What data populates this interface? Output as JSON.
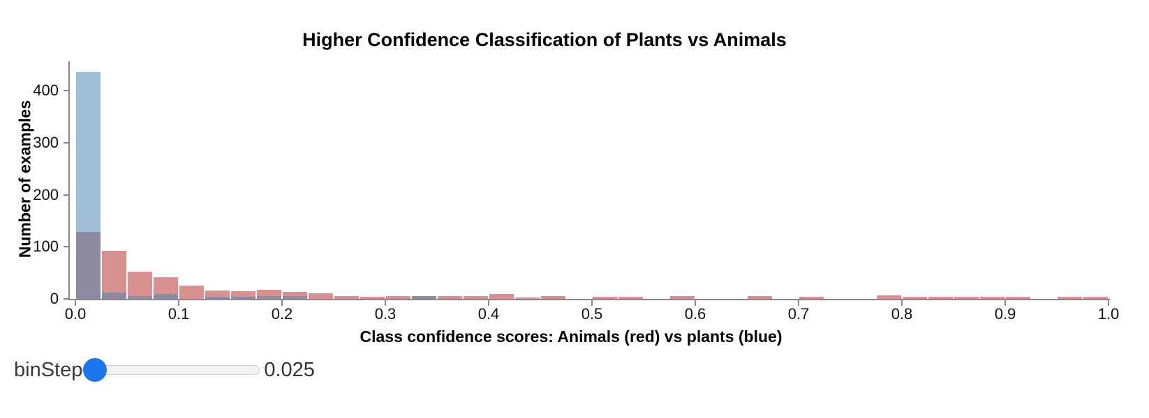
{
  "chart": {
    "title": "Higher Confidence Classification of Plants vs Animals",
    "x_axis_title": "Class confidence scores: Animals (red) vs plants (blue)",
    "y_axis_title": "Number of examples"
  },
  "chart_data": {
    "type": "bar",
    "subtype": "overlaid_histogram",
    "title": "Higher Confidence Classification of Plants vs Animals",
    "xlabel": "Class confidence scores: Animals (red) vs plants (blue)",
    "ylabel": "Number of examples",
    "x_domain": [
      0.0,
      1.0
    ],
    "y_domain": [
      0,
      450
    ],
    "bin_step": 0.025,
    "grid": false,
    "legend": "none",
    "axis_color": "#888888",
    "x_tick_labels": [
      "0.0",
      "0.1",
      "0.2",
      "0.3",
      "0.4",
      "0.5",
      "0.6",
      "0.7",
      "0.8",
      "0.9",
      "1.0"
    ],
    "y_tick_values": [
      0,
      100,
      200,
      300,
      400
    ],
    "y_tick_labels": [
      "0",
      "100",
      "200",
      "300",
      "400"
    ],
    "bin_starts": [
      0,
      0.025,
      0.05,
      0.075,
      0.1,
      0.125,
      0.15,
      0.175,
      0.2,
      0.225,
      0.25,
      0.275,
      0.3,
      0.325,
      0.35,
      0.375,
      0.4,
      0.425,
      0.45,
      0.475,
      0.5,
      0.525,
      0.55,
      0.575,
      0.6,
      0.625,
      0.65,
      0.675,
      0.7,
      0.725,
      0.75,
      0.775,
      0.8,
      0.825,
      0.85,
      0.875,
      0.9,
      0.925,
      0.95,
      0.975
    ],
    "series": [
      {
        "name": "Animals",
        "fill": "rgba(178,34,34,0.5)",
        "appears_on_white": "#d99396",
        "overlap_with_blue_appears": "#8e89a2",
        "counts": [
          128,
          93,
          52,
          42,
          25,
          16,
          15,
          18,
          14,
          11,
          6,
          4,
          6,
          6,
          5,
          5,
          9,
          3,
          5,
          0,
          4,
          4,
          0,
          5,
          0,
          0,
          5,
          0,
          4,
          0,
          0,
          7,
          4,
          4,
          4,
          4,
          4,
          0,
          4,
          4
        ]
      },
      {
        "name": "Plants",
        "fill": "rgba(70,130,180,0.5)",
        "appears_on_white": "#a2c1dc",
        "counts": [
          437,
          12,
          6,
          10,
          0,
          4,
          4,
          5,
          5,
          0,
          0,
          0,
          0,
          6,
          0,
          0,
          0,
          0,
          0,
          0,
          0,
          0,
          0,
          0,
          0,
          0,
          0,
          0,
          0,
          0,
          0,
          0,
          0,
          0,
          0,
          0,
          0,
          0,
          0,
          0
        ]
      }
    ]
  },
  "slider": {
    "label": "binStep",
    "value": "0.025",
    "thumb_color": "#1976eb",
    "track_color": "#f1f1f1",
    "track_border_color": "#cfcfcf"
  }
}
